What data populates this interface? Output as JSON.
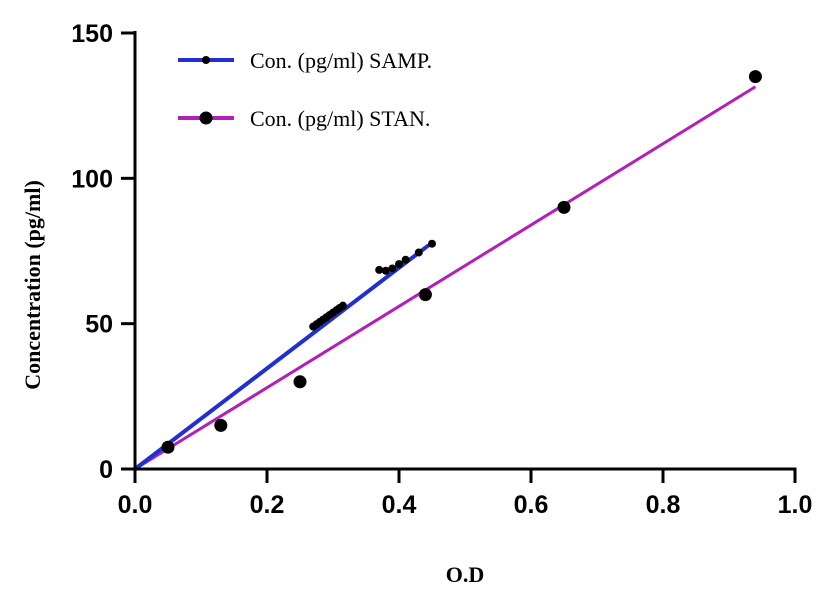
{
  "chart_data": {
    "type": "scatter",
    "title": "",
    "xlabel": "O.D",
    "ylabel": "Concentration (pg/ml)",
    "xlim": [
      0,
      1.0
    ],
    "ylim": [
      0,
      150
    ],
    "x_ticks": [
      "0.0",
      "0.2",
      "0.4",
      "0.6",
      "0.8",
      "1.0"
    ],
    "y_ticks": [
      "0",
      "50",
      "100",
      "150"
    ],
    "grid": false,
    "legend_position": "top-left",
    "series": [
      {
        "name": "Con. (pg/ml) SAMP.",
        "color": "#1f2fd0",
        "marker": "small-dot",
        "fit_line": [
          [
            0,
            0
          ],
          [
            0.445,
            77
          ]
        ],
        "points": [
          [
            0.27,
            49
          ],
          [
            0.275,
            49.8
          ],
          [
            0.28,
            50.6
          ],
          [
            0.285,
            51.4
          ],
          [
            0.29,
            52.2
          ],
          [
            0.295,
            53
          ],
          [
            0.3,
            53.8
          ],
          [
            0.305,
            54.6
          ],
          [
            0.31,
            55.4
          ],
          [
            0.315,
            56.2
          ],
          [
            0.37,
            68.5
          ],
          [
            0.38,
            68.2
          ],
          [
            0.39,
            69
          ],
          [
            0.4,
            70.5
          ],
          [
            0.41,
            72
          ],
          [
            0.43,
            74.5
          ],
          [
            0.45,
            77.5
          ]
        ]
      },
      {
        "name": "Con. (pg/ml) STAN.",
        "color": "#b220b8",
        "marker": "large-dot",
        "fit_line": [
          [
            0,
            0
          ],
          [
            0.94,
            131.5
          ]
        ],
        "points": [
          [
            0.05,
            7.5
          ],
          [
            0.13,
            15
          ],
          [
            0.25,
            30
          ],
          [
            0.44,
            60
          ],
          [
            0.65,
            90
          ],
          [
            0.94,
            135
          ]
        ]
      }
    ]
  }
}
